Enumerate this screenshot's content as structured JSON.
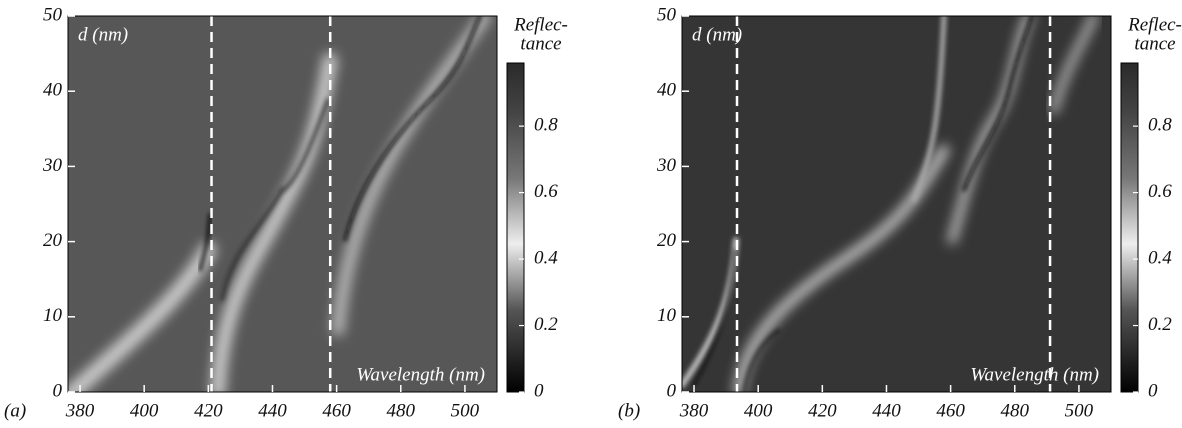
{
  "chart_data": [
    {
      "type": "heatmap",
      "panel_label": "(a)",
      "xlabel": "Wavelength (nm)",
      "ylabel": "d (nm)",
      "colorbar_label": [
        "Reflec-",
        "tance"
      ],
      "xlim": [
        376.25,
        510
      ],
      "ylim": [
        0,
        50
      ],
      "xticks": [
        380,
        400,
        420,
        440,
        460,
        480,
        500
      ],
      "yticks": [
        0,
        10,
        20,
        30,
        40,
        50
      ],
      "clim": [
        0,
        0.99
      ],
      "cticks": [
        0,
        0.2,
        0.4,
        0.6,
        0.8
      ],
      "vlines": [
        421,
        458
      ],
      "background": "#575757"
    },
    {
      "type": "heatmap",
      "panel_label": "(b)",
      "xlabel": "Wavelength (nm)",
      "ylabel": "d (nm)",
      "colorbar_label": [
        "Reflec-",
        "tance"
      ],
      "xlim": [
        376.25,
        510
      ],
      "ylim": [
        0,
        50
      ],
      "xticks": [
        380,
        400,
        420,
        440,
        460,
        480,
        500
      ],
      "yticks": [
        0,
        10,
        20,
        30,
        40,
        50
      ],
      "clim": [
        0,
        0.99
      ],
      "cticks": [
        0,
        0.2,
        0.4,
        0.6,
        0.8
      ],
      "vlines": [
        393.4,
        491
      ],
      "background": "#353535"
    }
  ]
}
